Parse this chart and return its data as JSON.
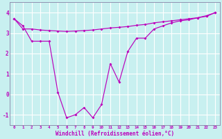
{
  "bg_color": "#c8f0f0",
  "line_color": "#bb00bb",
  "grid_color": "#ffffff",
  "xlabel": "Windchill (Refroidissement éolien,°C)",
  "hours": [
    0,
    1,
    2,
    3,
    4,
    5,
    6,
    7,
    8,
    9,
    10,
    11,
    12,
    13,
    14,
    15,
    16,
    17,
    18,
    19,
    20,
    21,
    22,
    23
  ],
  "windchill": [
    3.7,
    3.35,
    2.6,
    2.6,
    2.6,
    0.1,
    -1.15,
    -1.0,
    -0.65,
    -1.15,
    -0.5,
    1.5,
    0.6,
    2.1,
    2.75,
    2.75,
    3.2,
    3.35,
    3.5,
    3.6,
    3.65,
    3.75,
    3.85,
    4.0
  ],
  "temp": [
    3.7,
    3.2,
    3.2,
    3.15,
    3.12,
    3.1,
    3.08,
    3.1,
    3.12,
    3.15,
    3.2,
    3.25,
    3.28,
    3.32,
    3.38,
    3.42,
    3.5,
    3.55,
    3.6,
    3.65,
    3.7,
    3.75,
    3.82,
    4.0
  ],
  "ylim": [
    -1.5,
    4.5
  ],
  "yticks": [
    -1,
    0,
    1,
    2,
    3,
    4
  ],
  "xlim": [
    -0.5,
    23.5
  ]
}
